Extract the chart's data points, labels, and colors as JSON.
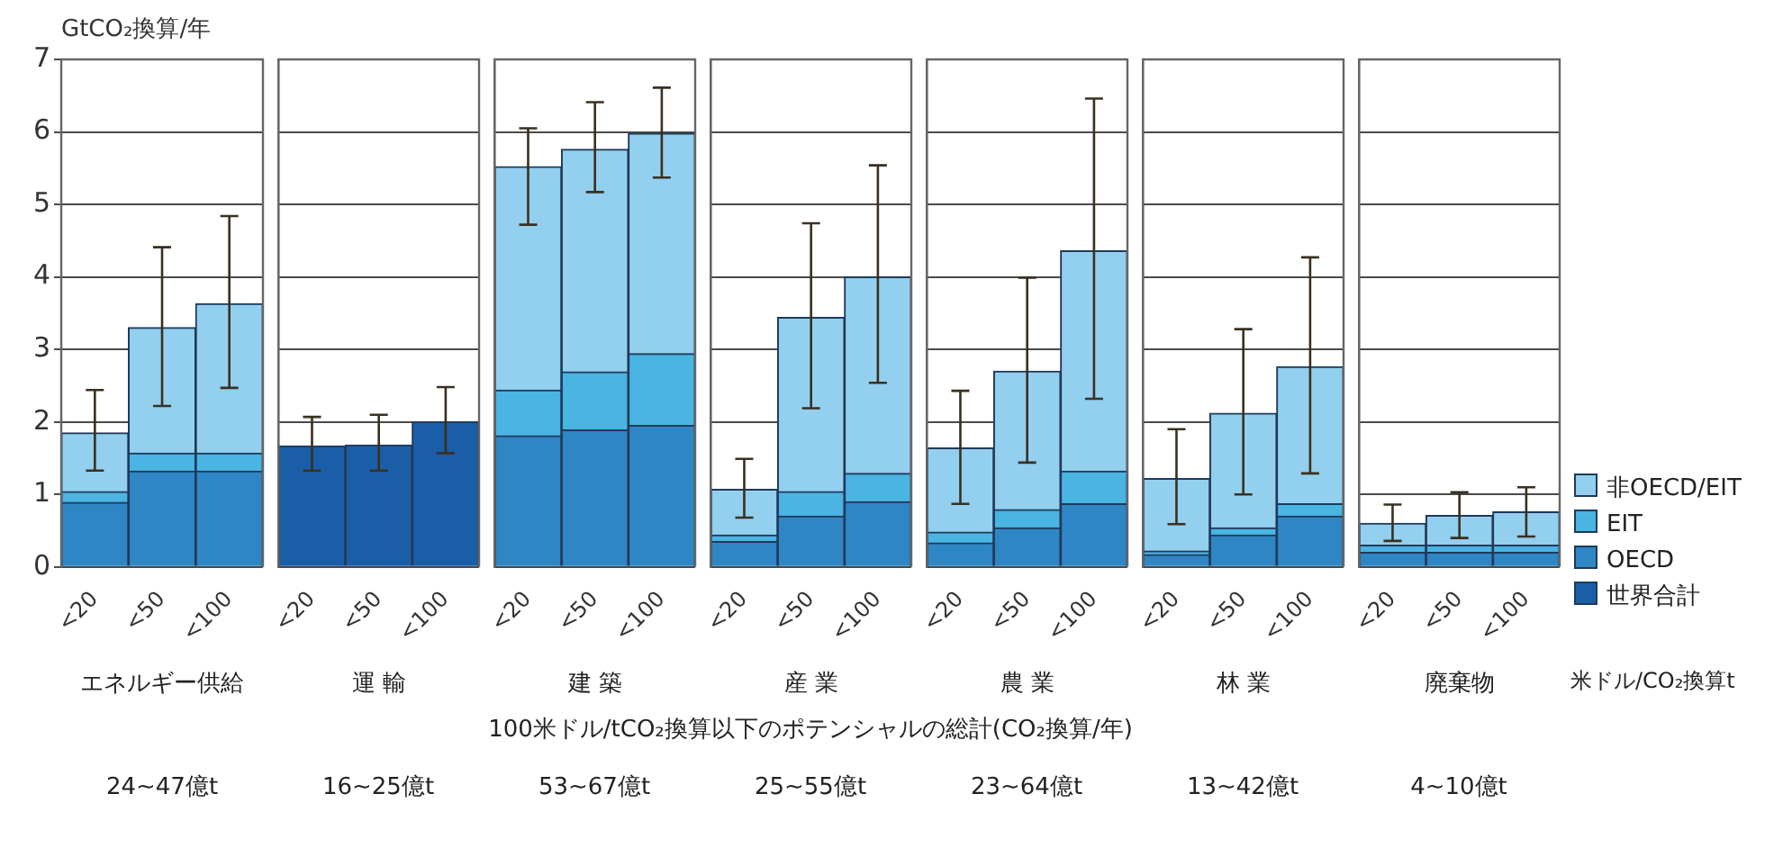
{
  "chart_data": [
    {
      "type": "bar",
      "stacked": true,
      "categories": [
        "<20",
        "<50",
        "<100"
      ],
      "xlabel": "エネルギー供給",
      "ylabel": "GtCO₂換算/年",
      "ylim": [
        0,
        7
      ],
      "yticks": [
        0,
        1,
        2,
        3,
        4,
        5,
        6,
        7
      ],
      "grid": "y",
      "legend": false,
      "annotations": [
        "100米ドル/tCO₂換算以下のポテンシャルの総計(CO₂換算/年)",
        "24~47億t"
      ],
      "series": [
        {
          "color": "#2f86c4",
          "values": [
            0.89,
            1.32,
            1.32
          ]
        },
        {
          "color": "#4ab4e3",
          "values": [
            0.15,
            0.25,
            0.25
          ]
        },
        {
          "color": "#93cfee",
          "values": [
            0.81,
            1.73,
            2.06
          ],
          "errors": [
            [
              1.33,
              2.44
            ],
            [
              2.22,
              4.41
            ],
            [
              2.47,
              4.84
            ]
          ]
        }
      ]
    },
    {
      "type": "bar",
      "stacked": true,
      "categories": [
        "<20",
        "<50",
        "<100"
      ],
      "xlabel": "運 輸",
      "ylim": [
        0,
        7
      ],
      "yticks": [
        0,
        1,
        2,
        3,
        4,
        5,
        6,
        7
      ],
      "grid": "y",
      "legend": false,
      "tick_labels": "x",
      "annotations": [
        "16~25億t"
      ],
      "series": [
        {
          "color": "#1b5ea8",
          "values": [
            1.67,
            1.68,
            2.0
          ],
          "errors": [
            [
              1.33,
              2.07
            ],
            [
              1.33,
              2.1
            ],
            [
              1.57,
              2.48
            ]
          ]
        }
      ]
    },
    {
      "type": "bar",
      "stacked": true,
      "categories": [
        "<20",
        "<50",
        "<100"
      ],
      "xlabel": "建 築",
      "ylim": [
        0,
        7
      ],
      "yticks": [
        0,
        1,
        2,
        3,
        4,
        5,
        6,
        7
      ],
      "grid": "y",
      "legend": false,
      "tick_labels": "x",
      "annotations": [
        "53~67億t"
      ],
      "series": [
        {
          "color": "#2f86c4",
          "values": [
            1.81,
            1.89,
            1.95
          ]
        },
        {
          "color": "#4ab4e3",
          "values": [
            0.63,
            0.8,
            0.99
          ]
        },
        {
          "color": "#93cfee",
          "values": [
            3.08,
            3.07,
            3.04
          ],
          "errors": [
            [
              4.72,
              6.05
            ],
            [
              5.17,
              6.41
            ],
            [
              5.37,
              6.61
            ]
          ]
        }
      ]
    },
    {
      "type": "bar",
      "stacked": true,
      "categories": [
        "<20",
        "<50",
        "<100"
      ],
      "xlabel": "産 業",
      "ylim": [
        0,
        7
      ],
      "yticks": [
        0,
        1,
        2,
        3,
        4,
        5,
        6,
        7
      ],
      "grid": "y",
      "legend": false,
      "tick_labels": "x",
      "annotations": [
        "25~55億t"
      ],
      "series": [
        {
          "color": "#2f86c4",
          "values": [
            0.35,
            0.7,
            0.9
          ]
        },
        {
          "color": "#4ab4e3",
          "values": [
            0.09,
            0.34,
            0.39
          ]
        },
        {
          "color": "#93cfee",
          "values": [
            0.63,
            2.4,
            2.71
          ],
          "errors": [
            [
              0.68,
              1.49
            ],
            [
              2.19,
              4.74
            ],
            [
              2.54,
              5.54
            ]
          ]
        }
      ]
    },
    {
      "type": "bar",
      "stacked": true,
      "categories": [
        "<20",
        "<50",
        "<100"
      ],
      "xlabel": "農 業",
      "ylim": [
        0,
        7
      ],
      "yticks": [
        0,
        1,
        2,
        3,
        4,
        5,
        6,
        7
      ],
      "grid": "y",
      "legend": false,
      "tick_labels": "x",
      "annotations": [
        "23~64億t"
      ],
      "series": [
        {
          "color": "#2f86c4",
          "values": [
            0.33,
            0.54,
            0.87
          ]
        },
        {
          "color": "#4ab4e3",
          "values": [
            0.15,
            0.25,
            0.45
          ]
        },
        {
          "color": "#93cfee",
          "values": [
            1.16,
            1.91,
            3.04
          ],
          "errors": [
            [
              0.87,
              2.43
            ],
            [
              1.44,
              3.99
            ],
            [
              2.32,
              6.46
            ]
          ]
        }
      ]
    },
    {
      "type": "bar",
      "stacked": true,
      "categories": [
        "<20",
        "<50",
        "<100"
      ],
      "xlabel": "林 業",
      "ylim": [
        0,
        7
      ],
      "yticks": [
        0,
        1,
        2,
        3,
        4,
        5,
        6,
        7
      ],
      "grid": "y",
      "legend": false,
      "tick_labels": "x",
      "annotations": [
        "13~42億t"
      ],
      "series": [
        {
          "color": "#2f86c4",
          "values": [
            0.17,
            0.44,
            0.7
          ]
        },
        {
          "color": "#4ab4e3",
          "values": [
            0.05,
            0.1,
            0.17
          ]
        },
        {
          "color": "#93cfee",
          "values": [
            1.0,
            1.58,
            1.89
          ],
          "errors": [
            [
              0.59,
              1.9
            ],
            [
              1.0,
              3.28
            ],
            [
              1.29,
              4.27
            ]
          ]
        }
      ]
    },
    {
      "type": "bar",
      "stacked": true,
      "categories": [
        "<20",
        "<50",
        "<100"
      ],
      "xlabel": "廃棄物",
      "ylim": [
        0,
        7
      ],
      "yticks": [
        0,
        1,
        2,
        3,
        4,
        5,
        6,
        7
      ],
      "grid": "y",
      "legend": "right",
      "tick_labels": "x",
      "annotations": [
        "米ドル/CO₂換算t",
        "4~10億t"
      ],
      "series": [
        {
          "name": "世界合計",
          "color": "#1b5ea8",
          "values": [
            null,
            null,
            null
          ]
        },
        {
          "name": "OECD",
          "color": "#2f86c4",
          "values": [
            0.2,
            0.2,
            0.2
          ]
        },
        {
          "name": "EIT",
          "color": "#4ab4e3",
          "values": [
            0.1,
            0.1,
            0.1
          ]
        },
        {
          "name": "非OECD/EIT",
          "color": "#93cfee",
          "values": [
            0.3,
            0.41,
            0.46
          ],
          "errors": [
            [
              0.36,
              0.86
            ],
            [
              0.4,
              1.03
            ],
            [
              0.42,
              1.1
            ]
          ]
        }
      ]
    }
  ]
}
